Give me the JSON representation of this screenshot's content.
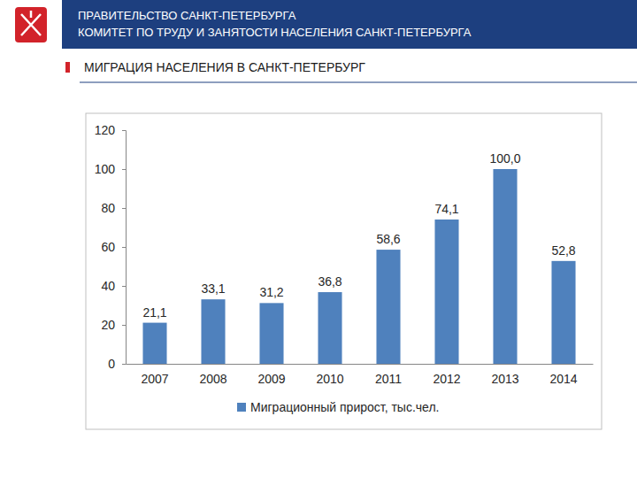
{
  "header": {
    "organization": "ПРАВИТЕЛЬСТВО САНКТ-ПЕТЕРБУРГА",
    "department": "КОМИТЕТ ПО ТРУДУ И ЗАНЯТОСТИ НАСЕЛЕНИЯ САНКТ-ПЕТЕРБУРГА"
  },
  "chart_data": {
    "type": "bar",
    "title": "МИГРАЦИЯ НАСЕЛЕНИЯ В САНКТ-ПЕТЕРБУРГ",
    "categories": [
      "2007",
      "2008",
      "2009",
      "2010",
      "2011",
      "2012",
      "2013",
      "2014"
    ],
    "series": [
      {
        "name": "Миграционный прирост, тыс.чел.",
        "color": "#4f81bd",
        "values": [
          21.1,
          33.1,
          31.2,
          36.8,
          58.6,
          74.1,
          100.0,
          52.8
        ],
        "value_labels": [
          "21,1",
          "33,1",
          "31,2",
          "36,8",
          "58,6",
          "74,1",
          "100,0",
          "52,8"
        ]
      }
    ],
    "ylim": [
      0,
      120
    ],
    "yticks": [
      0,
      20,
      40,
      60,
      80,
      100,
      120
    ],
    "grid": false,
    "data_labels": true,
    "legend": "bottom"
  }
}
